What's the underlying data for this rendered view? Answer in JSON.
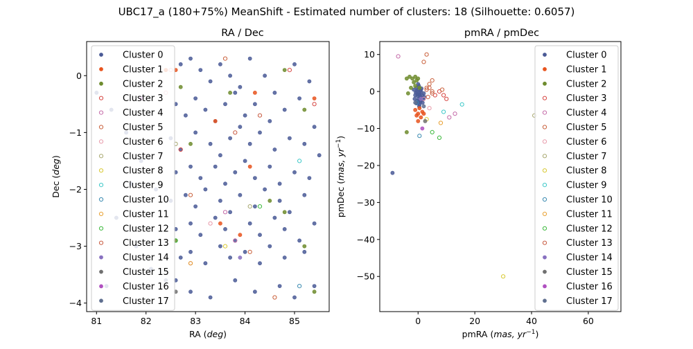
{
  "figure": {
    "title": "UBC17_a (180+75%) MeanShift - Estimated number of clusters: 18 (Silhouette: 0.6057)"
  },
  "legend": {
    "entries": [
      "Cluster 0",
      "Cluster 1",
      "Cluster 2",
      "Cluster 3",
      "Cluster 4",
      "Cluster 5",
      "Cluster 6",
      "Cluster 7",
      "Cluster 8",
      "Cluster 9",
      "Cluster 10",
      "Cluster 11",
      "Cluster 12",
      "Cluster 13",
      "Cluster 14",
      "Cluster 15",
      "Cluster 16",
      "Cluster 17"
    ],
    "colors": [
      "#4a5a96",
      "#e8541e",
      "#6e8c2e",
      "#d64541",
      "#c46aa8",
      "#c9603b",
      "#e89aaa",
      "#a8a870",
      "#d8c830",
      "#3cc8c8",
      "#3a8ab0",
      "#e8a030",
      "#3ab83a",
      "#c85a40",
      "#8870c0",
      "#707070",
      "#b050c0",
      "#607090"
    ],
    "hollow": [
      false,
      false,
      false,
      true,
      true,
      true,
      true,
      true,
      true,
      true,
      true,
      true,
      true,
      true,
      false,
      false,
      false,
      false
    ],
    "placement": "upper-left / upper-right"
  },
  "chart_data": [
    {
      "type": "scatter",
      "title": "RA / Dec",
      "xlabel": "RA (deg)",
      "ylabel": "Dec (deg)",
      "xlim": [
        80.8,
        85.7
      ],
      "ylim": [
        -4.15,
        0.6
      ],
      "xticks": [
        81,
        82,
        83,
        84,
        85
      ],
      "yticks": [
        0,
        -1,
        -2,
        -3,
        -4
      ],
      "legend_position": "upper-left",
      "grid": false,
      "points": [
        [
          82.7,
          0.2,
          0
        ],
        [
          82.9,
          0.3,
          0
        ],
        [
          83.1,
          0.1,
          0
        ],
        [
          83.3,
          -0.1,
          0
        ],
        [
          83.5,
          0.2,
          0
        ],
        [
          83.7,
          0.0,
          0
        ],
        [
          83.9,
          -0.2,
          0
        ],
        [
          84.1,
          0.3,
          0
        ],
        [
          84.4,
          0.0,
          0
        ],
        [
          84.6,
          -0.3,
          0
        ],
        [
          85.0,
          0.2,
          0
        ],
        [
          85.3,
          -0.1,
          0
        ],
        [
          82.6,
          -0.5,
          0
        ],
        [
          82.8,
          -0.7,
          0
        ],
        [
          83.0,
          -0.4,
          0
        ],
        [
          83.2,
          -0.6,
          0
        ],
        [
          83.4,
          -0.8,
          0
        ],
        [
          83.6,
          -0.5,
          0
        ],
        [
          83.8,
          -0.3,
          0
        ],
        [
          84.0,
          -0.7,
          0
        ],
        [
          84.2,
          -0.5,
          0
        ],
        [
          84.5,
          -0.8,
          0
        ],
        [
          84.8,
          -0.6,
          0
        ],
        [
          85.1,
          -0.4,
          0
        ],
        [
          85.4,
          -0.9,
          0
        ],
        [
          82.5,
          -1.1,
          0
        ],
        [
          82.7,
          -1.3,
          0
        ],
        [
          83.0,
          -1.0,
          0
        ],
        [
          83.3,
          -1.2,
          0
        ],
        [
          83.5,
          -1.4,
          0
        ],
        [
          83.7,
          -1.1,
          0
        ],
        [
          83.9,
          -0.9,
          0
        ],
        [
          84.1,
          -1.2,
          0
        ],
        [
          84.3,
          -1.0,
          0
        ],
        [
          84.6,
          -1.3,
          0
        ],
        [
          84.9,
          -1.1,
          0
        ],
        [
          85.2,
          -1.2,
          0
        ],
        [
          85.5,
          -1.4,
          0
        ],
        [
          82.6,
          -1.7,
          0
        ],
        [
          82.9,
          -1.6,
          0
        ],
        [
          83.1,
          -1.8,
          0
        ],
        [
          83.4,
          -1.6,
          0
        ],
        [
          83.6,
          -1.9,
          0
        ],
        [
          83.8,
          -1.7,
          0
        ],
        [
          84.0,
          -1.5,
          0
        ],
        [
          84.2,
          -1.8,
          0
        ],
        [
          84.5,
          -1.6,
          0
        ],
        [
          84.7,
          -1.9,
          0
        ],
        [
          85.0,
          -1.7,
          0
        ],
        [
          85.3,
          -1.8,
          0
        ],
        [
          82.5,
          -2.2,
          0
        ],
        [
          82.8,
          -2.1,
          0
        ],
        [
          83.0,
          -2.3,
          0
        ],
        [
          83.2,
          -2.0,
          0
        ],
        [
          83.5,
          -2.2,
          0
        ],
        [
          83.7,
          -2.4,
          0
        ],
        [
          83.9,
          -2.1,
          0
        ],
        [
          84.2,
          -2.3,
          0
        ],
        [
          84.4,
          -2.0,
          0
        ],
        [
          84.7,
          -2.2,
          0
        ],
        [
          84.9,
          -2.4,
          0
        ],
        [
          85.2,
          -2.1,
          0
        ],
        [
          82.6,
          -2.7,
          0
        ],
        [
          82.9,
          -2.6,
          0
        ],
        [
          83.1,
          -2.8,
          0
        ],
        [
          83.4,
          -2.5,
          0
        ],
        [
          83.6,
          -2.7,
          0
        ],
        [
          83.8,
          -2.9,
          0
        ],
        [
          84.1,
          -2.6,
          0
        ],
        [
          84.3,
          -2.8,
          0
        ],
        [
          84.6,
          -2.5,
          0
        ],
        [
          84.8,
          -2.7,
          0
        ],
        [
          85.1,
          -2.9,
          0
        ],
        [
          85.4,
          -2.6,
          0
        ],
        [
          82.7,
          -3.2,
          0
        ],
        [
          82.9,
          -3.1,
          0
        ],
        [
          83.2,
          -3.3,
          0
        ],
        [
          83.5,
          -3.0,
          0
        ],
        [
          83.7,
          -3.2,
          0
        ],
        [
          84.0,
          -3.1,
          0
        ],
        [
          84.3,
          -3.3,
          0
        ],
        [
          84.5,
          -3.0,
          0
        ],
        [
          84.8,
          -3.2,
          0
        ],
        [
          85.2,
          -3.1,
          0
        ],
        [
          82.6,
          -3.6,
          0
        ],
        [
          82.9,
          -3.8,
          0
        ],
        [
          83.3,
          -3.9,
          0
        ],
        [
          83.8,
          -3.6,
          0
        ],
        [
          84.2,
          -3.8,
          0
        ],
        [
          84.7,
          -3.7,
          0
        ],
        [
          85.0,
          -3.9,
          0
        ],
        [
          85.4,
          -3.7,
          0
        ],
        [
          81.0,
          -0.3,
          0
        ],
        [
          81.3,
          -0.6,
          0
        ],
        [
          81.6,
          -1.0,
          0
        ],
        [
          81.9,
          -1.5,
          0
        ],
        [
          82.2,
          -2.0,
          0
        ],
        [
          81.4,
          -2.5,
          0
        ],
        [
          81.8,
          -3.0,
          0
        ],
        [
          82.1,
          -3.4,
          0
        ],
        [
          81.2,
          -3.7,
          0
        ],
        [
          81.7,
          -1.9,
          0
        ],
        [
          82.4,
          0.1,
          1
        ],
        [
          82.6,
          0.1,
          1
        ],
        [
          84.2,
          -0.3,
          1
        ],
        [
          85.4,
          -0.4,
          1
        ],
        [
          83.4,
          -0.8,
          1
        ],
        [
          84.1,
          -1.6,
          1
        ],
        [
          83.5,
          -2.6,
          1
        ],
        [
          83.9,
          -2.8,
          1
        ],
        [
          82.7,
          -0.2,
          2
        ],
        [
          83.7,
          -0.3,
          2
        ],
        [
          84.8,
          0.1,
          2
        ],
        [
          85.2,
          -0.6,
          2
        ],
        [
          82.9,
          -1.2,
          2
        ],
        [
          84.5,
          -2.2,
          2
        ],
        [
          84.8,
          -2.4,
          2
        ],
        [
          85.2,
          -3.0,
          2
        ],
        [
          85.4,
          -3.8,
          2
        ],
        [
          82.6,
          -2.9,
          2
        ],
        [
          84.9,
          0.1,
          3
        ],
        [
          85.4,
          -0.5,
          3
        ],
        [
          82.7,
          -1.3,
          3
        ],
        [
          83.8,
          -2.9,
          4
        ],
        [
          82.9,
          -3.3,
          4
        ],
        [
          83.6,
          -2.4,
          4
        ],
        [
          83.6,
          0.3,
          5
        ],
        [
          82.9,
          -2.1,
          5
        ],
        [
          84.6,
          -3.9,
          5
        ],
        [
          84.1,
          -3.1,
          5
        ],
        [
          82.5,
          0.1,
          6
        ],
        [
          82.4,
          -0.3,
          6
        ],
        [
          83.3,
          -2.6,
          6
        ],
        [
          84.1,
          -2.3,
          7
        ],
        [
          82.6,
          -1.2,
          7
        ],
        [
          83.6,
          -3.0,
          8
        ],
        [
          85.1,
          -1.5,
          9
        ],
        [
          85.1,
          -3.7,
          10
        ],
        [
          82.9,
          -3.3,
          11
        ],
        [
          84.3,
          -2.3,
          12
        ],
        [
          82.6,
          -2.9,
          12
        ],
        [
          83.8,
          -1.0,
          13
        ],
        [
          84.3,
          -0.7,
          13
        ],
        [
          83.9,
          -3.2,
          14
        ],
        [
          82.6,
          -3.8,
          15
        ],
        [
          81.9,
          -0.4,
          16
        ],
        [
          82.4,
          -3.6,
          17
        ]
      ]
    },
    {
      "type": "scatter",
      "title": "pmRA / pmDec",
      "xlabel": "pmRA (mas, yr^-1)",
      "ylabel": "pmDec (mas, yr^-1)",
      "xlim": [
        -13.5,
        71.5
      ],
      "ylim": [
        -59.5,
        13.5
      ],
      "xticks": [
        0,
        20,
        40,
        60
      ],
      "yticks": [
        10,
        0,
        -10,
        -20,
        -30,
        -40,
        -50
      ],
      "legend_position": "upper-right",
      "grid": false,
      "points": [
        [
          -0.5,
          1,
          0
        ],
        [
          0,
          0.5,
          0
        ],
        [
          0.5,
          -0.5,
          0
        ],
        [
          1,
          0,
          0
        ],
        [
          -1,
          -1,
          0
        ],
        [
          0.2,
          -2,
          0
        ],
        [
          0.8,
          -1.5,
          0
        ],
        [
          -0.3,
          -2.5,
          0
        ],
        [
          1.5,
          -1,
          0
        ],
        [
          0,
          -3,
          0
        ],
        [
          0.5,
          -3.5,
          0
        ],
        [
          -0.8,
          -0.3,
          0
        ],
        [
          1.2,
          0.8,
          0
        ],
        [
          0.3,
          1.5,
          0
        ],
        [
          -0.2,
          -1.2,
          0
        ],
        [
          0.7,
          -2.8,
          0
        ],
        [
          1.8,
          -2,
          0
        ],
        [
          -1.2,
          -2,
          0
        ],
        [
          0.1,
          -0.8,
          0
        ],
        [
          2,
          -0.5,
          0
        ],
        [
          0.4,
          -4,
          0
        ],
        [
          -0.6,
          -3.2,
          0
        ],
        [
          1.1,
          -2.4,
          0
        ],
        [
          2.2,
          -1.5,
          0
        ],
        [
          0,
          2,
          0
        ],
        [
          0.9,
          0.3,
          0
        ],
        [
          -1.5,
          0.5,
          0
        ],
        [
          1.6,
          -3,
          0
        ],
        [
          0.6,
          -1,
          0
        ],
        [
          -0.4,
          0,
          0
        ],
        [
          -9,
          -22,
          0
        ],
        [
          -1,
          -5,
          1
        ],
        [
          0,
          -6,
          1
        ],
        [
          1,
          -7,
          1
        ],
        [
          1.5,
          -5.5,
          1
        ],
        [
          0,
          -8,
          1
        ],
        [
          -0.5,
          -6.5,
          1
        ],
        [
          2,
          -6,
          1
        ],
        [
          0.5,
          -4.5,
          1
        ],
        [
          -3,
          4,
          2
        ],
        [
          -2,
          3.5,
          2
        ],
        [
          -1,
          4,
          2
        ],
        [
          0,
          3.5,
          2
        ],
        [
          -4,
          3.5,
          2
        ],
        [
          -1.5,
          2.5,
          2
        ],
        [
          -0.5,
          3,
          2
        ],
        [
          -3.5,
          -0.5,
          2
        ],
        [
          -2.5,
          1,
          2
        ],
        [
          -1,
          1.5,
          2
        ],
        [
          0.5,
          1,
          2
        ],
        [
          -4,
          -11,
          2
        ],
        [
          10,
          -2,
          3
        ],
        [
          9,
          -1,
          3
        ],
        [
          6,
          -1,
          3
        ],
        [
          7.5,
          0,
          3
        ],
        [
          13,
          -6,
          4
        ],
        [
          11,
          -7,
          4
        ],
        [
          -7,
          9.5,
          4
        ],
        [
          3,
          10,
          5
        ],
        [
          2,
          8,
          5
        ],
        [
          4,
          2,
          5
        ],
        [
          5,
          3,
          5
        ],
        [
          3,
          1,
          5
        ],
        [
          5,
          0,
          5
        ],
        [
          8.5,
          0.5,
          5
        ],
        [
          2,
          -2,
          6
        ],
        [
          4,
          -4.5,
          6
        ],
        [
          41,
          -6.5,
          7
        ],
        [
          30,
          -50,
          8
        ],
        [
          3,
          -7.5,
          8
        ],
        [
          15.5,
          -3.5,
          9
        ],
        [
          9,
          -5.5,
          9
        ],
        [
          0.5,
          -12,
          10
        ],
        [
          -0.5,
          -3,
          10
        ],
        [
          8,
          -8.5,
          11
        ],
        [
          5,
          -11,
          12
        ],
        [
          7.5,
          -12.5,
          12
        ],
        [
          4,
          1,
          13
        ],
        [
          5,
          -0.5,
          13
        ],
        [
          3.5,
          -1.5,
          13
        ],
        [
          3,
          0.5,
          13
        ],
        [
          1,
          -2,
          14
        ],
        [
          2.5,
          -8,
          15
        ],
        [
          1.5,
          -10,
          16
        ],
        [
          -1,
          -3,
          17
        ],
        [
          2,
          -4,
          17
        ]
      ]
    }
  ]
}
